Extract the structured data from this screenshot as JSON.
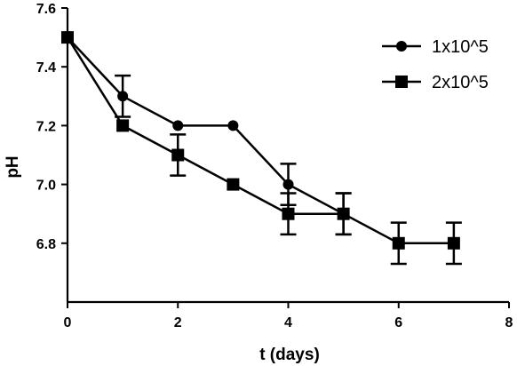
{
  "chart_data": {
    "type": "line",
    "title": "",
    "xlabel": "t (days)",
    "ylabel": "pH",
    "xlim": [
      0,
      8
    ],
    "ylim": [
      6.6,
      7.6
    ],
    "xticks": [
      0,
      2,
      4,
      6,
      8
    ],
    "yticks": [
      6.8,
      7.0,
      7.2,
      7.4,
      7.6
    ],
    "ytick_labels": [
      "6.8",
      "7.0",
      "7.2",
      "7.4",
      "7.6"
    ],
    "grid": false,
    "legend_position": "top-right",
    "series": [
      {
        "name": "1x10^5",
        "marker": "circle",
        "color": "#000000",
        "x": [
          0,
          1,
          2,
          3,
          4,
          5
        ],
        "y": [
          7.5,
          7.3,
          7.2,
          7.2,
          7.0,
          6.9
        ],
        "error": [
          0,
          0.07,
          0,
          0,
          0.07,
          0.07
        ]
      },
      {
        "name": "2x10^5",
        "marker": "square",
        "color": "#000000",
        "x": [
          0,
          1,
          2,
          3,
          4,
          5,
          6,
          7
        ],
        "y": [
          7.5,
          7.2,
          7.1,
          7.0,
          6.9,
          6.9,
          6.8,
          6.8
        ],
        "error": [
          0,
          0,
          0.07,
          0,
          0.07,
          0.07,
          0.07,
          0.07
        ]
      }
    ]
  }
}
